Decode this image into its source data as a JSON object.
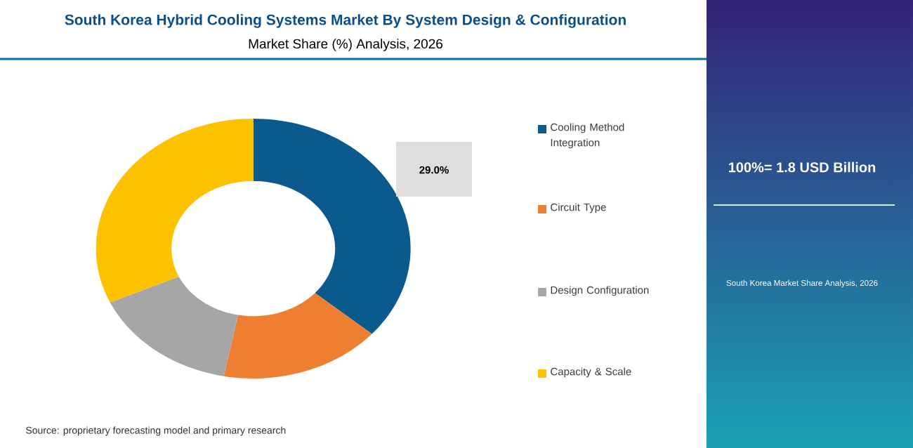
{
  "chart_data": {
    "type": "donut",
    "title": "South Korea Hybrid Cooling Systems Market By System Design & Configuration",
    "subtitle": "Market Share (%) Analysis, 2026",
    "categories": [
      "Cooling Method Integration",
      "Circuit Type",
      "Design Configuration",
      "Capacity & Scale"
    ],
    "values": [
      36.4,
      16.6,
      15.2,
      31.8
    ],
    "colors": [
      "#0b5a8e",
      "#ee7f32",
      "#a6a6a8",
      "#fcc200"
    ],
    "legend": "right",
    "annotations": [
      "29.0%",
      "100%= 1.8 USD Billion",
      "South Korea Market Share Analysis, 2026",
      "Source: proprietary forecasting model and primary research"
    ]
  }
}
